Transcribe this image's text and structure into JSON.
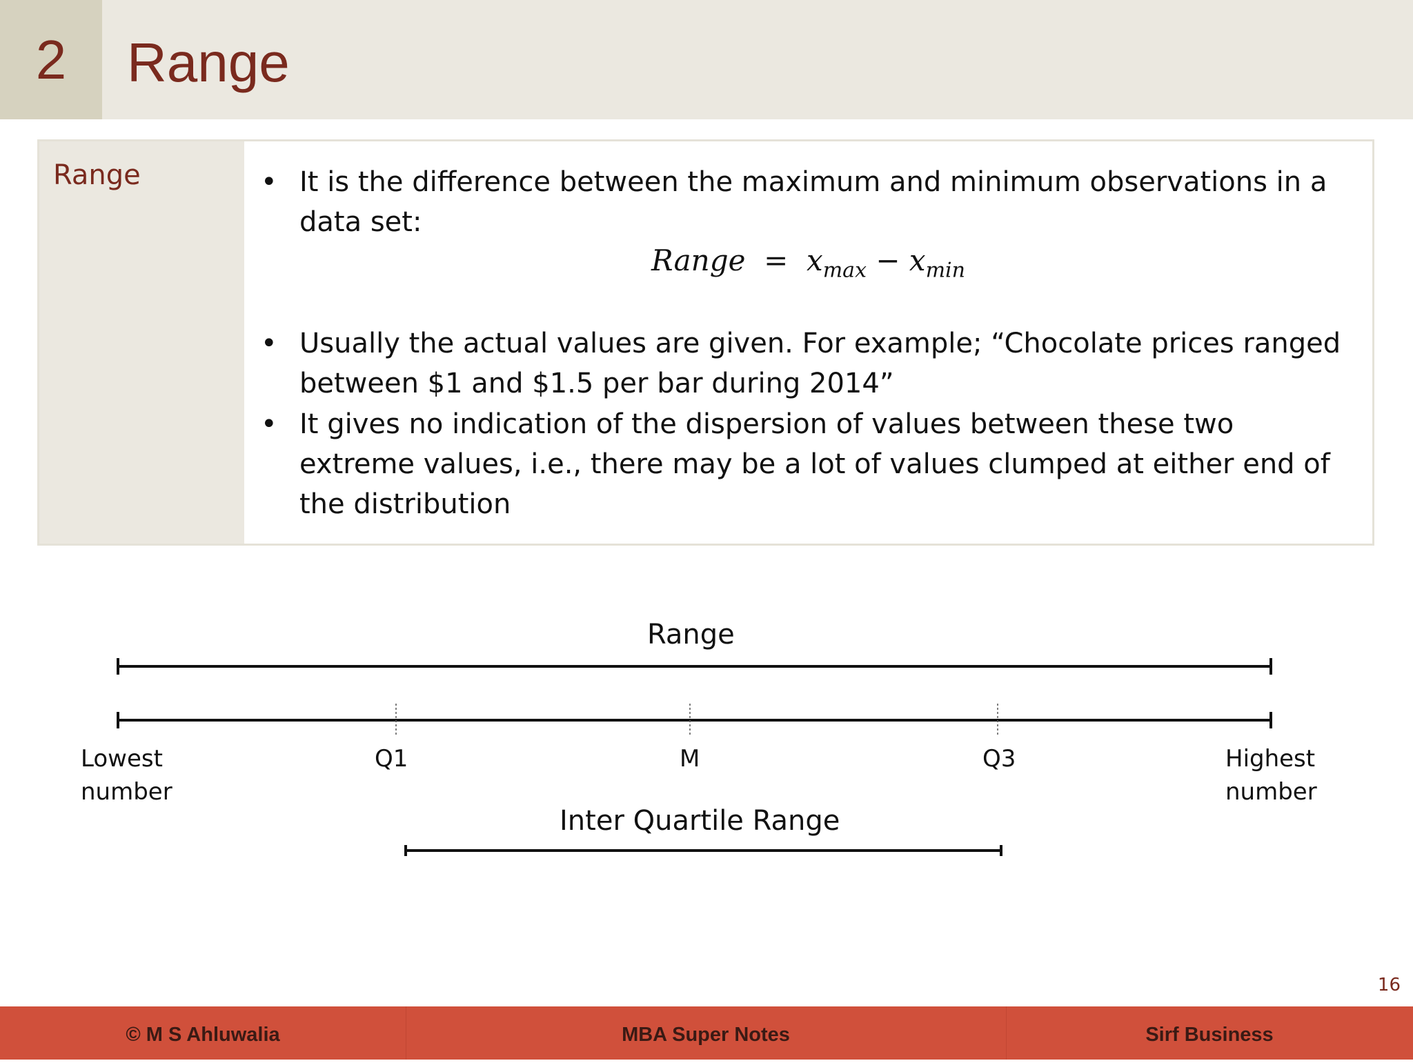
{
  "header": {
    "section_number": "2",
    "title": "Range"
  },
  "panel": {
    "label": "Range",
    "bullet1": "It is the difference between the maximum and minimum observations in a data set:",
    "formula": {
      "lhs": "Range",
      "equals": "=",
      "x1": "x",
      "sub1": "max",
      "minus": "−",
      "x2": "x",
      "sub2": "min"
    },
    "bullet2": "Usually the actual values are given.  For example; “Chocolate prices ranged between $1 and $1.5  per bar during 2014”",
    "bullet3": "It gives no indication of the dispersion of values between these two extreme values, i.e., there may be a lot of values clumped at either end of the distribution"
  },
  "diagram": {
    "range_label": "Range",
    "lowest_line1": "Lowest",
    "lowest_line2": "number",
    "q1_label": "Q1",
    "median_label": "M",
    "q3_label": "Q3",
    "highest_line1": "Highest",
    "highest_line2": "number",
    "iqr_label": "Inter Quartile Range"
  },
  "page_number": "16",
  "footer": {
    "left": "© M S Ahluwalia",
    "center": "MBA Super Notes",
    "right": "Sirf Business"
  }
}
